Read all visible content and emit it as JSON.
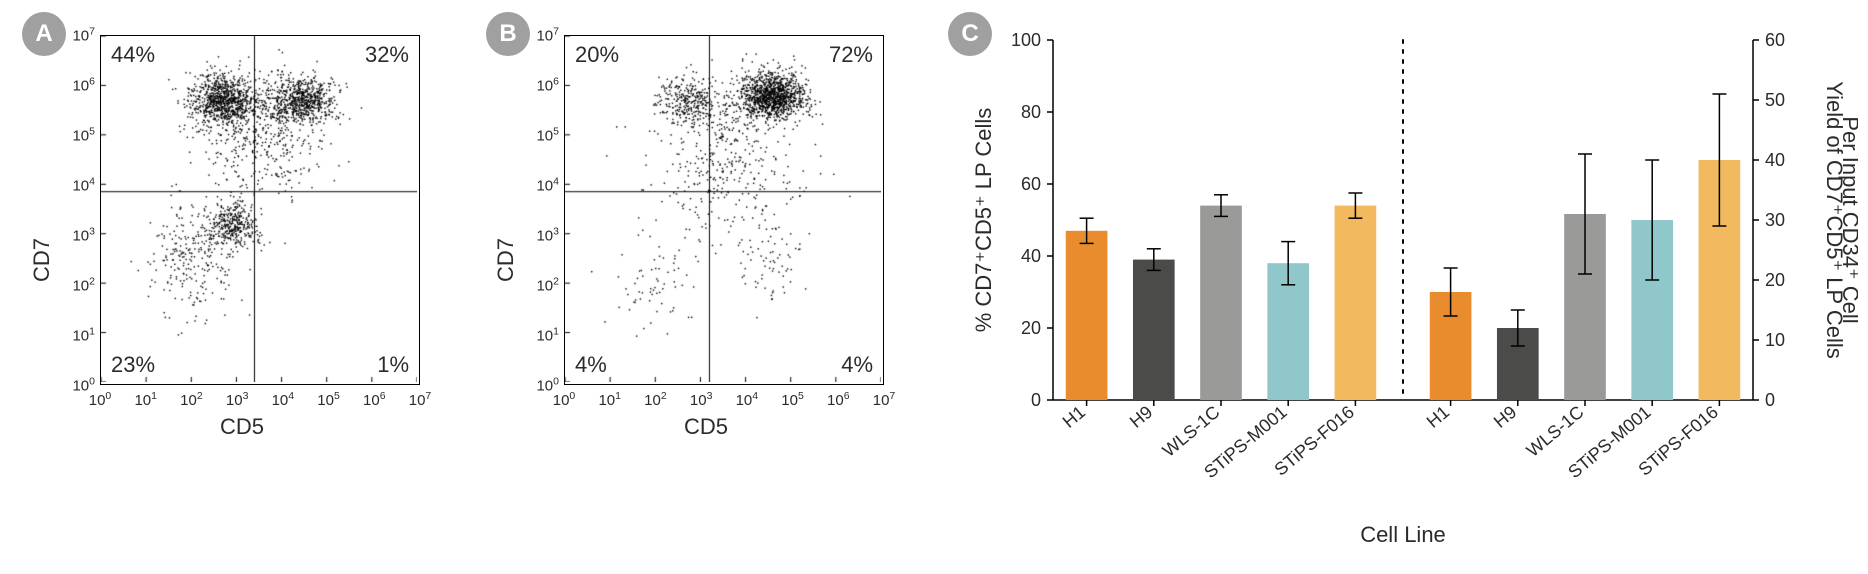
{
  "badges": {
    "a": "A",
    "b": "B",
    "c": "C"
  },
  "scatter": {
    "a": {
      "xlabel": "CD5",
      "ylabel": "CD7",
      "quads": {
        "q2_ul": "44%",
        "q1_ur": "32%",
        "q3_ll": "23%",
        "q4_lr": "1%"
      },
      "gate_x_log": 3.4,
      "gate_y_log": 3.85,
      "clusters": [
        {
          "cx_log": 2.7,
          "cy_log": 5.7,
          "rx": 0.9,
          "ry": 0.7,
          "n": 900
        },
        {
          "cx_log": 4.4,
          "cy_log": 5.7,
          "rx": 0.9,
          "ry": 0.6,
          "n": 700
        },
        {
          "cx_log": 2.9,
          "cy_log": 3.2,
          "rx": 0.7,
          "ry": 0.6,
          "n": 350
        },
        {
          "cx_log": 2.0,
          "cy_log": 2.5,
          "rx": 1.2,
          "ry": 1.4,
          "n": 250
        },
        {
          "cx_log": 3.5,
          "cy_log": 5.0,
          "rx": 1.8,
          "ry": 1.6,
          "n": 400
        }
      ]
    },
    "b": {
      "xlabel": "CD5",
      "ylabel": "CD7",
      "quads": {
        "q2_ul": "20%",
        "q1_ur": "72%",
        "q3_ll": "4%",
        "q4_lr": "4%"
      },
      "gate_x_log": 3.2,
      "gate_y_log": 3.85,
      "clusters": [
        {
          "cx_log": 4.6,
          "cy_log": 5.8,
          "rx": 0.9,
          "ry": 0.6,
          "n": 1200
        },
        {
          "cx_log": 2.7,
          "cy_log": 5.7,
          "rx": 0.9,
          "ry": 0.6,
          "n": 300
        },
        {
          "cx_log": 3.5,
          "cy_log": 4.5,
          "rx": 2.0,
          "ry": 2.0,
          "n": 400
        },
        {
          "cx_log": 4.5,
          "cy_log": 2.5,
          "rx": 1.0,
          "ry": 1.2,
          "n": 70
        },
        {
          "cx_log": 2.0,
          "cy_log": 2.0,
          "rx": 1.2,
          "ry": 1.2,
          "n": 60
        }
      ]
    },
    "axis_min_log": 0,
    "axis_max_log": 7,
    "ticks": [
      0,
      1,
      2,
      3,
      4,
      5,
      6,
      7
    ]
  },
  "barchart": {
    "ylabel_left": "% CD7⁺CD5⁺ LP Cells",
    "ylabel_right_line1": "Yield of CD7⁺CD5⁺ LP Cells",
    "ylabel_right_line2": "Per Input CD34⁺ Cell",
    "xlabel": "Cell Line",
    "categories": [
      "H1",
      "H9",
      "WLS-1C",
      "STiPS-M001",
      "STiPS-F016"
    ],
    "left": {
      "ylim": [
        0,
        100
      ],
      "ytick_step": 20,
      "values": [
        47,
        39,
        54,
        38,
        54
      ],
      "err": [
        3.5,
        3,
        3,
        6,
        3.5
      ]
    },
    "right": {
      "ylim": [
        0,
        60
      ],
      "ytick_step": 10,
      "values": [
        18,
        12,
        31,
        30,
        40
      ],
      "err": [
        4,
        3,
        10,
        10,
        11
      ]
    },
    "colors": [
      "#e98c2e",
      "#4b4b49",
      "#9a9a98",
      "#8fc7cb",
      "#f2b95f"
    ],
    "axis_color": "#000000",
    "background": "#ffffff",
    "bar_width": 0.62,
    "label_fontsize": 22,
    "tick_fontsize": 18
  }
}
